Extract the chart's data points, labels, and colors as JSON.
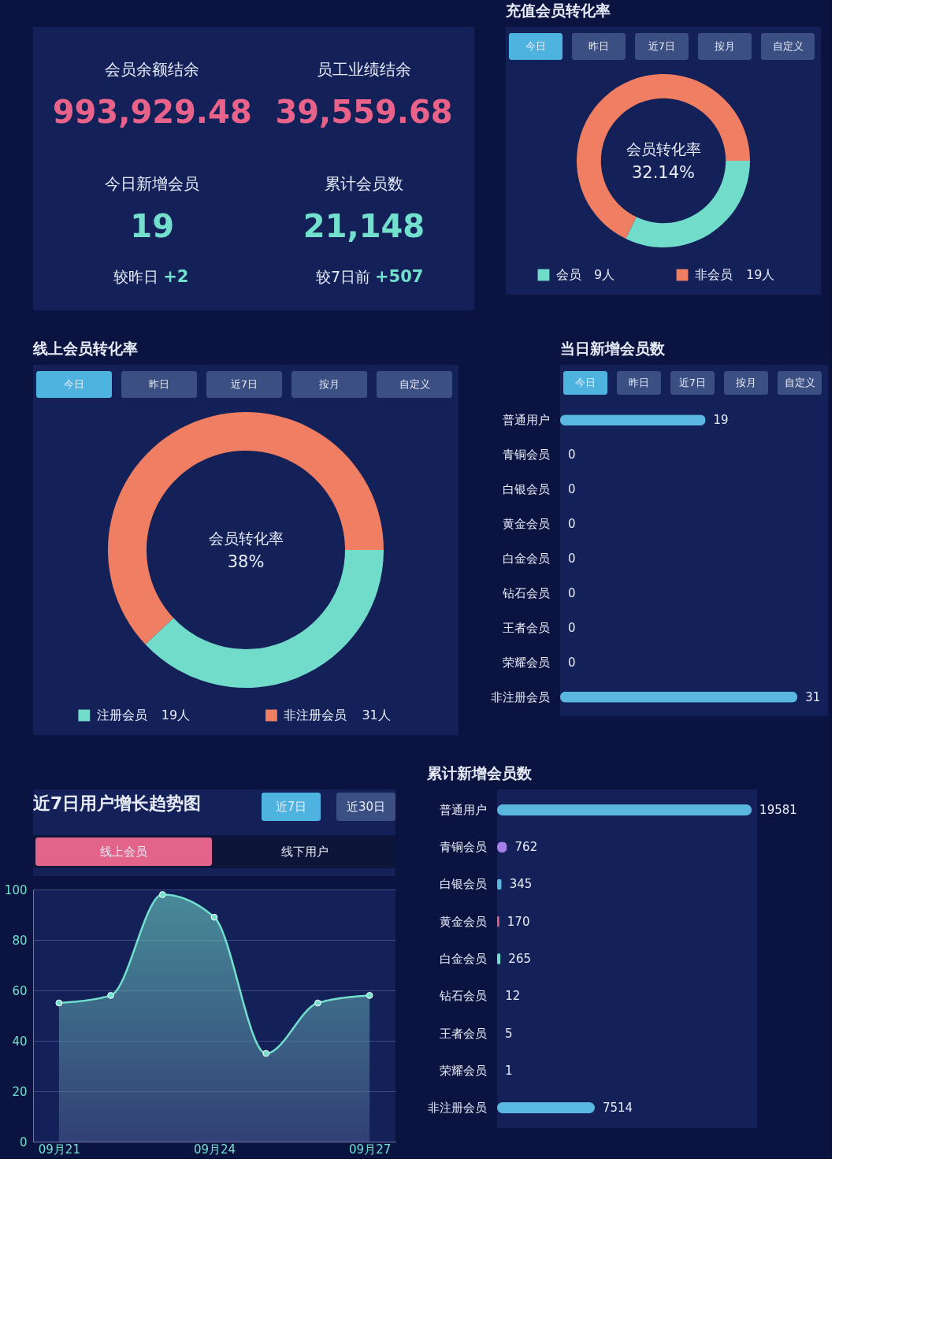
{
  "chart_data": [
    {
      "type": "other",
      "annotations": [
        "会员余额结余",
        "993,929.48",
        "员工业绩结余",
        "39,559.68",
        "今日新增会员",
        "19",
        "累计会员数",
        "21,148",
        "较昨日",
        "+2",
        "较7日前",
        "+507"
      ]
    },
    {
      "type": "donut",
      "title": "充值会员转化率",
      "categories": [
        "会员",
        "非会员"
      ],
      "values": [
        9,
        19
      ],
      "value_labels": [
        "9人",
        "19人"
      ],
      "colors": [
        "#72dccb",
        "#ef7e62"
      ],
      "legend": "bottom",
      "annotations": [
        "今日",
        "昨日",
        "近7日",
        "按月",
        "自定义",
        "会员转化率",
        "32.14%"
      ]
    },
    {
      "type": "donut",
      "title": "线上会员转化率",
      "categories": [
        "注册会员",
        "非注册会员"
      ],
      "values": [
        19,
        31
      ],
      "value_labels": [
        "19人",
        "31人"
      ],
      "colors": [
        "#72dccb",
        "#ef7e62"
      ],
      "legend": "bottom",
      "annotations": [
        "今日",
        "昨日",
        "近7日",
        "按月",
        "自定义",
        "会员转化率",
        "38%"
      ]
    },
    {
      "type": "bar",
      "orientation": "horizontal",
      "title": "当日新增会员数",
      "categories": [
        "普通用户",
        "青铜会员",
        "白银会员",
        "黄金会员",
        "白金会员",
        "钻石会员",
        "王者会员",
        "荣耀会员",
        "非注册会员"
      ],
      "values": [
        19,
        0,
        0,
        0,
        0,
        0,
        0,
        0,
        31
      ],
      "colors": [
        "#5ab8e0",
        "#5ab8e0",
        "#5ab8e0",
        "#5ab8e0",
        "#5ab8e0",
        "#5ab8e0",
        "#5ab8e0",
        "#5ab8e0",
        "#5ab8e0"
      ],
      "data_labels": true,
      "annotations": [
        "今日",
        "昨日",
        "近7日",
        "按月",
        "自定义"
      ]
    },
    {
      "type": "area",
      "title": "近7日用户增长趋势图",
      "categories": [
        "09月21",
        null,
        null,
        "09月24",
        null,
        null,
        "09月27"
      ],
      "series": [
        {
          "color": "#72e0cc",
          "values": [
            55,
            58,
            98,
            89,
            35,
            55,
            58
          ]
        }
      ],
      "ylim": [
        0,
        100
      ],
      "yticks": [
        0,
        20,
        40,
        60,
        80,
        100
      ],
      "grid": "y",
      "marker": "circle",
      "line_style": "solid",
      "annotations": [
        "近7日",
        "近30日",
        "线上会员",
        "线下用户"
      ]
    },
    {
      "type": "bar",
      "orientation": "horizontal",
      "title": "累计新增会员数",
      "categories": [
        "普通用户",
        "青铜会员",
        "白银会员",
        "黄金会员",
        "白金会员",
        "钻石会员",
        "王者会员",
        "荣耀会员",
        "非注册会员"
      ],
      "values": [
        19581,
        762,
        345,
        170,
        265,
        12,
        5,
        1,
        7514
      ],
      "colors": [
        "#5ab8e0",
        "#a77de8",
        "#5ab8e0",
        "#e0607e",
        "#72dccb",
        "#5ab8e0",
        "#5ab8e0",
        "#5ab8e0",
        "#5ab8e0"
      ],
      "data_labels": true
    }
  ]
}
